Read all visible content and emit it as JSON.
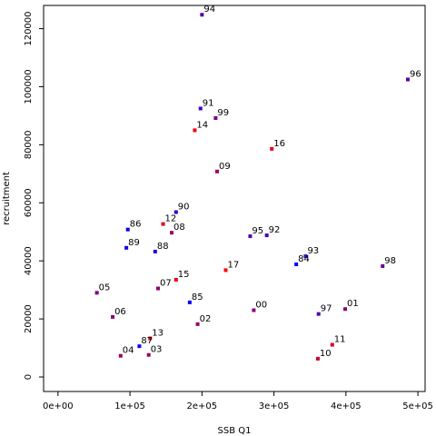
{
  "chart_data": {
    "type": "scatter",
    "title": "",
    "xlabel": "SSB Q1",
    "ylabel": "recruitment",
    "xlim": [
      -20000,
      510000
    ],
    "ylim": [
      -5000,
      128000
    ],
    "x_ticks": [
      0,
      100000,
      200000,
      300000,
      400000,
      500000
    ],
    "x_tick_labels": [
      "0e+00",
      "1e+05",
      "2e+05",
      "3e+05",
      "4e+05",
      "5e+05"
    ],
    "y_ticks": [
      0,
      20000,
      40000,
      60000,
      80000,
      100000,
      120000
    ],
    "y_tick_labels": [
      "0",
      "20000",
      "40000",
      "60000",
      "80000",
      "100000",
      "120000"
    ],
    "grid": false,
    "legend": "none",
    "points": [
      {
        "label": "94",
        "x": 200000,
        "y": 124800,
        "color": "#5500aa"
      },
      {
        "label": "96",
        "x": 486000,
        "y": 102500,
        "color": "#5500aa"
      },
      {
        "label": "91",
        "x": 198000,
        "y": 92500,
        "color": "#4000bf"
      },
      {
        "label": "99",
        "x": 219000,
        "y": 89200,
        "color": "#7a0085"
      },
      {
        "label": "14",
        "x": 190000,
        "y": 85000,
        "color": "#ee0011"
      },
      {
        "label": "16",
        "x": 297000,
        "y": 78600,
        "color": "#ee0011"
      },
      {
        "label": "09",
        "x": 221000,
        "y": 70800,
        "color": "#aa0055"
      },
      {
        "label": "90",
        "x": 164000,
        "y": 56800,
        "color": "#2500da"
      },
      {
        "label": "86",
        "x": 97000,
        "y": 50800,
        "color": "#0000ff"
      },
      {
        "label": "12",
        "x": 146000,
        "y": 52700,
        "color": "#dd0022"
      },
      {
        "label": "08",
        "x": 158000,
        "y": 49700,
        "color": "#9a0065"
      },
      {
        "label": "95",
        "x": 267000,
        "y": 48500,
        "color": "#5500aa"
      },
      {
        "label": "92",
        "x": 290000,
        "y": 48800,
        "color": "#4a00b5"
      },
      {
        "label": "89",
        "x": 95000,
        "y": 44500,
        "color": "#1500ea"
      },
      {
        "label": "88",
        "x": 135000,
        "y": 43200,
        "color": "#1a00e5"
      },
      {
        "label": "93",
        "x": 344000,
        "y": 41600,
        "color": "#4000bf"
      },
      {
        "label": "84",
        "x": 331000,
        "y": 38800,
        "color": "#0000ff"
      },
      {
        "label": "98",
        "x": 451000,
        "y": 38200,
        "color": "#6a0095"
      },
      {
        "label": "17",
        "x": 233000,
        "y": 36800,
        "color": "#ff0000"
      },
      {
        "label": "15",
        "x": 164000,
        "y": 33500,
        "color": "#ee0011"
      },
      {
        "label": "07",
        "x": 139000,
        "y": 30500,
        "color": "#8a0075"
      },
      {
        "label": "05",
        "x": 54000,
        "y": 29000,
        "color": "#7a0085"
      },
      {
        "label": "85",
        "x": 183000,
        "y": 25700,
        "color": "#0a00f5"
      },
      {
        "label": "00",
        "x": 272000,
        "y": 23000,
        "color": "#8a0075"
      },
      {
        "label": "01",
        "x": 399000,
        "y": 23400,
        "color": "#8a0075"
      },
      {
        "label": "97",
        "x": 362000,
        "y": 21700,
        "color": "#5500aa"
      },
      {
        "label": "06",
        "x": 76000,
        "y": 20700,
        "color": "#8a0075"
      },
      {
        "label": "02",
        "x": 194000,
        "y": 18200,
        "color": "#9a0065"
      },
      {
        "label": "13",
        "x": 128000,
        "y": 13300,
        "color": "#ee0011"
      },
      {
        "label": "11",
        "x": 381000,
        "y": 11100,
        "color": "#dd0022"
      },
      {
        "label": "87",
        "x": 113000,
        "y": 10600,
        "color": "#0a00f5"
      },
      {
        "label": "04",
        "x": 87000,
        "y": 7300,
        "color": "#9a0065"
      },
      {
        "label": "03",
        "x": 126000,
        "y": 7600,
        "color": "#9a0065"
      },
      {
        "label": "10",
        "x": 361000,
        "y": 6300,
        "color": "#cc0033"
      }
    ]
  }
}
